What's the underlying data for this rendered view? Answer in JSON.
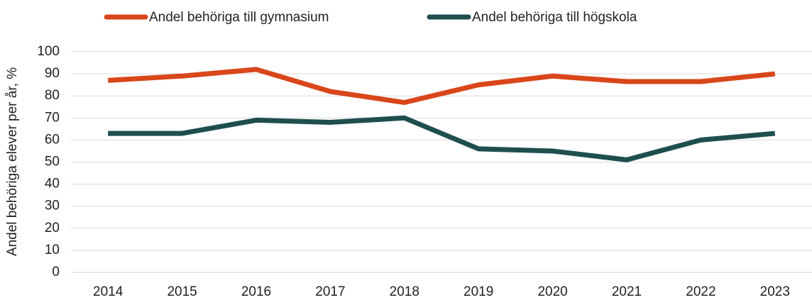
{
  "chart_data": {
    "type": "line",
    "y_label": "Andel behöriga elever per år, %",
    "categories": [
      "2014",
      "2015",
      "2016",
      "2017",
      "2018",
      "2019",
      "2020",
      "2021",
      "2022",
      "2023"
    ],
    "series": [
      {
        "name": "Andel behöriga till gymnasium",
        "color": "#d9461a",
        "values": [
          87,
          89,
          92,
          82,
          77,
          85,
          89,
          86.5,
          86.5,
          90
        ]
      },
      {
        "name": "Andel behöriga till högskola",
        "color": "#1f4e4f",
        "values": [
          63,
          63,
          69,
          68,
          70,
          56,
          55,
          51,
          60,
          63
        ]
      }
    ],
    "ylim": [
      0,
      100
    ],
    "yticks": [
      0,
      10,
      20,
      30,
      40,
      50,
      60,
      70,
      80,
      90,
      100
    ],
    "grid": true,
    "legend": "top"
  }
}
